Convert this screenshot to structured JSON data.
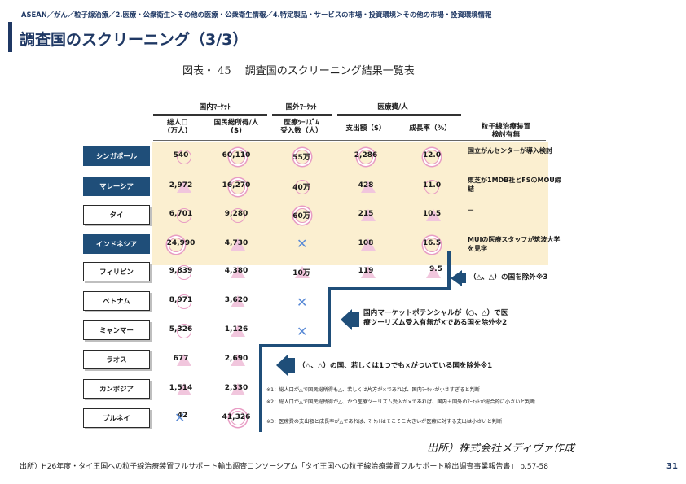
{
  "header": {
    "breadcrumb": "ASEAN／がん／粒子線治療／2.医療・公衆衛生＞その他の医療・公衆衛生情報／4.特定製品・サービスの市場・投資環境＞その他の市場・投資環境情報",
    "title": "調査国のスクリーニング（3/3）"
  },
  "figure": {
    "caption": "図表・ 45　 調査国のスクリーニング結果一覧表",
    "group_headers": {
      "domestic": "国内ﾏｰｹｯﾄ",
      "foreign": "国外ﾏｰｹｯﾄ",
      "medical_cost": "医療費/人"
    },
    "column_headers": {
      "population": "総人口\n(万人)",
      "gni": "国民総所得/人\n($)",
      "tourism": "医療ﾂｰﾘｽﾞﾑ\n受入数（人）",
      "spend": "支出額（$）",
      "growth": "成長率（%）",
      "device": "粒子線治療装置\n検討有無"
    },
    "rows": [
      {
        "country": "シンガポール",
        "population": "540",
        "gni": "60,110",
        "tourism": "55万",
        "spend": "2,286",
        "growth": "12.0",
        "note": "国立がんセンターが導入検討"
      },
      {
        "country": "マレーシア",
        "population": "2,972",
        "gni": "16,270",
        "tourism": "40万",
        "spend": "428",
        "growth": "11.0",
        "note": "東芝が1MDB社とFSのMOU締結"
      },
      {
        "country": "タイ",
        "population": "6,701",
        "gni": "9,280",
        "tourism": "60万",
        "spend": "215",
        "growth": "10.5",
        "note": "－"
      },
      {
        "country": "インドネシア",
        "population": "24,990",
        "gni": "4,730",
        "tourism": "",
        "spend": "108",
        "growth": "16.5",
        "note": "MUIの医療スタッフが筑波大学を見学"
      },
      {
        "country": "フィリピン",
        "population": "9,839",
        "gni": "4,380",
        "tourism": "10万",
        "spend": "119",
        "growth": "9.5",
        "note": ""
      },
      {
        "country": "ベトナム",
        "population": "8,971",
        "gni": "3,620",
        "tourism": "",
        "spend": "",
        "growth": "",
        "note": ""
      },
      {
        "country": "ミャンマー",
        "population": "5,326",
        "gni": "1,126",
        "tourism": "",
        "spend": "",
        "growth": "",
        "note": ""
      },
      {
        "country": "ラオス",
        "population": "677",
        "gni": "2,690",
        "tourism": "",
        "spend": "",
        "growth": "",
        "note": ""
      },
      {
        "country": "カンボジア",
        "population": "1,514",
        "gni": "2,330",
        "tourism": "",
        "spend": "",
        "growth": "",
        "note": ""
      },
      {
        "country": "ブルネイ",
        "population": "42",
        "gni": "41,326",
        "tourism": "",
        "spend": "",
        "growth": "",
        "note": ""
      }
    ],
    "callouts": {
      "step1": "（△、△）の国を除外※3",
      "step2_line1": "国内マーケットポテンシャルが（○、△）で医",
      "step2_line2": "療ツーリズム受入有無が×である国を除外※2",
      "step3": "（△、△）の国、若しくは1つでも×がついている国を除外※1"
    },
    "footnotes": [
      "※1：総人口が△で国民総所得も△、若しくは片方が×であれば、国内ﾏｰｹｯﾄが小さすぎると判断",
      "※2：総人口が△で国民総所得が△、かつ医療ツーリズム受入が×であれば、国内＋国外のﾏｰｹｯﾄが総合的に小さいと判断",
      "※3：医療費の支出額と成長率が△であれば、ﾏｰｹｯﾄはそこそこ大きいが医療に対する支出は小さいと判断"
    ],
    "source_italic": "出所）株式会社メディヴァ作成"
  },
  "footer": {
    "source": "出所）H26年度・タイ王国への粒子線治療装置フルサポート輸出調査コンソーシアム「タイ王国への粒子線治療装置フルサポート輸出調査事業報告書」 p.57-58",
    "page": "31"
  },
  "colors": {
    "navy": "#1f4e79",
    "title": "#1f3864",
    "band": "#fbefd0",
    "circle": "#e89cc4",
    "cross": "#5b8bd6"
  }
}
